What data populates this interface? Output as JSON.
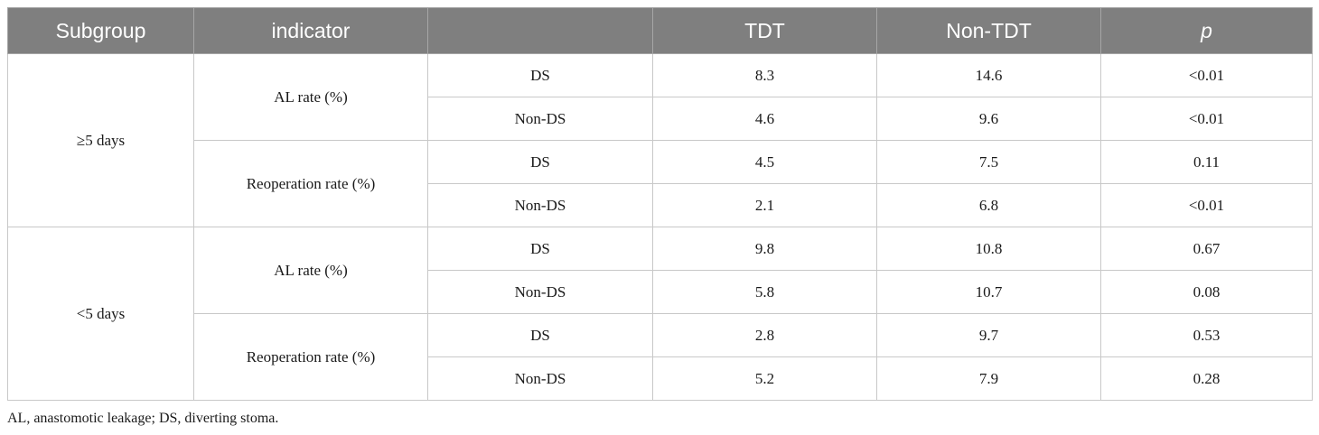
{
  "table": {
    "headers": [
      "Subgroup",
      "indicator",
      "",
      "TDT",
      "Non-TDT",
      "p"
    ],
    "groups": [
      {
        "subgroup": "≥5 days",
        "indicators": [
          {
            "label": "AL rate (%)",
            "rows": [
              {
                "stoma": "DS",
                "tdt": "8.3",
                "non_tdt": "14.6",
                "p": "<0.01"
              },
              {
                "stoma": "Non-DS",
                "tdt": "4.6",
                "non_tdt": "9.6",
                "p": "<0.01"
              }
            ]
          },
          {
            "label": "Reoperation rate (%)",
            "rows": [
              {
                "stoma": "DS",
                "tdt": "4.5",
                "non_tdt": "7.5",
                "p": "0.11"
              },
              {
                "stoma": "Non-DS",
                "tdt": "2.1",
                "non_tdt": "6.8",
                "p": "<0.01"
              }
            ]
          }
        ]
      },
      {
        "subgroup": "<5 days",
        "indicators": [
          {
            "label": "AL rate (%)",
            "rows": [
              {
                "stoma": "DS",
                "tdt": "9.8",
                "non_tdt": "10.8",
                "p": "0.67"
              },
              {
                "stoma": "Non-DS",
                "tdt": "5.8",
                "non_tdt": "10.7",
                "p": "0.08"
              }
            ]
          },
          {
            "label": "Reoperation rate (%)",
            "rows": [
              {
                "stoma": "DS",
                "tdt": "2.8",
                "non_tdt": "9.7",
                "p": "0.53"
              },
              {
                "stoma": "Non-DS",
                "tdt": "5.2",
                "non_tdt": "7.9",
                "p": "0.28"
              }
            ]
          }
        ]
      }
    ]
  },
  "footnote": "AL, anastomotic leakage; DS, diverting stoma.",
  "colors": {
    "header_bg": "#7f7f7f",
    "header_text": "#ffffff",
    "border": "#c8c8c8"
  }
}
